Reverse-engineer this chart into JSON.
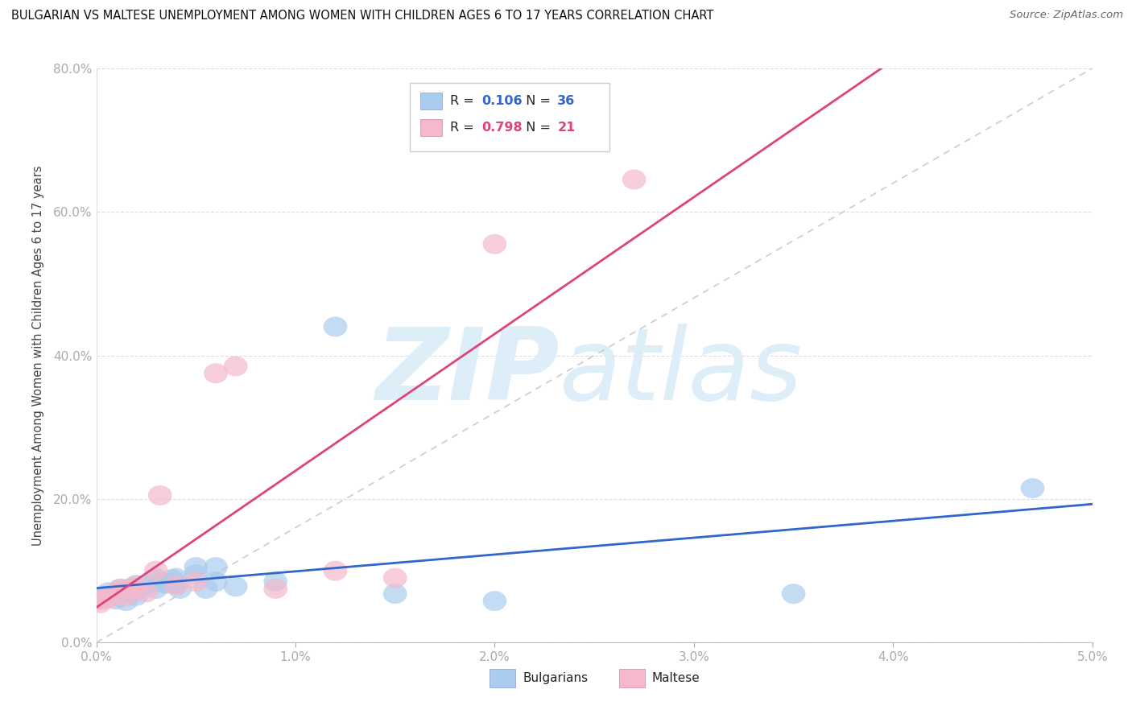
{
  "title": "BULGARIAN VS MALTESE UNEMPLOYMENT AMONG WOMEN WITH CHILDREN AGES 6 TO 17 YEARS CORRELATION CHART",
  "source": "Source: ZipAtlas.com",
  "ylabel": "Unemployment Among Women with Children Ages 6 to 17 years",
  "xlim": [
    0.0,
    0.05
  ],
  "ylim": [
    0.0,
    0.8
  ],
  "xticks": [
    0.0,
    0.01,
    0.02,
    0.03,
    0.04,
    0.05
  ],
  "xtick_labels": [
    "0.0%",
    "1.0%",
    "2.0%",
    "3.0%",
    "4.0%",
    "5.0%"
  ],
  "yticks": [
    0.0,
    0.2,
    0.4,
    0.6,
    0.8
  ],
  "ytick_labels": [
    "0.0%",
    "20.0%",
    "40.0%",
    "60.0%",
    "80.0%"
  ],
  "bulgarian_R": 0.106,
  "bulgarian_N": 36,
  "maltese_R": 0.798,
  "maltese_N": 21,
  "bg_color": "#ffffff",
  "blue_fill": "#aaccee",
  "pink_fill": "#f5b8cc",
  "blue_line": "#3366cc",
  "pink_line": "#dd4477",
  "ref_line": "#cccccc",
  "watermark_color": "#ddeef8",
  "bulgarians_x": [
    0.0002,
    0.0004,
    0.0006,
    0.0008,
    0.001,
    0.0012,
    0.0013,
    0.0015,
    0.0015,
    0.0016,
    0.0018,
    0.002,
    0.002,
    0.002,
    0.0022,
    0.0025,
    0.003,
    0.003,
    0.0032,
    0.0035,
    0.0038,
    0.004,
    0.004,
    0.0042,
    0.005,
    0.005,
    0.0055,
    0.006,
    0.006,
    0.007,
    0.009,
    0.012,
    0.015,
    0.02,
    0.035,
    0.047
  ],
  "bulgarians_y": [
    0.06,
    0.065,
    0.07,
    0.065,
    0.06,
    0.075,
    0.068,
    0.072,
    0.058,
    0.075,
    0.07,
    0.08,
    0.065,
    0.072,
    0.075,
    0.08,
    0.09,
    0.075,
    0.085,
    0.082,
    0.088,
    0.082,
    0.09,
    0.075,
    0.095,
    0.105,
    0.075,
    0.085,
    0.105,
    0.078,
    0.085,
    0.44,
    0.068,
    0.058,
    0.068,
    0.215
  ],
  "maltese_x": [
    0.0002,
    0.0004,
    0.0006,
    0.0008,
    0.001,
    0.0012,
    0.0015,
    0.0018,
    0.002,
    0.0025,
    0.003,
    0.0032,
    0.004,
    0.005,
    0.006,
    0.007,
    0.009,
    0.012,
    0.015,
    0.02,
    0.027
  ],
  "maltese_y": [
    0.055,
    0.06,
    0.062,
    0.065,
    0.07,
    0.075,
    0.065,
    0.075,
    0.08,
    0.07,
    0.1,
    0.205,
    0.08,
    0.085,
    0.375,
    0.385,
    0.075,
    0.1,
    0.09,
    0.555,
    0.645
  ]
}
